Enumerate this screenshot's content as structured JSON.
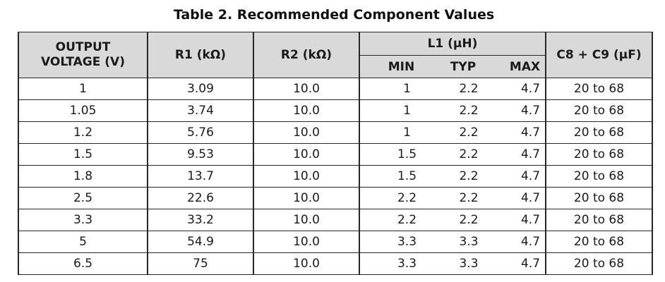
{
  "title": "Table 2. Recommended Component Values",
  "table": {
    "header": {
      "output_voltage": [
        "OUTPUT",
        "VOLTAGE (V)"
      ],
      "r1": "R1 (kΩ)",
      "r2": "R2 (kΩ)",
      "l1_group": "L1 (µH)",
      "min": "MIN",
      "typ": "TYP",
      "max": "MAX",
      "c8_c9": "C8 + C9 (µF)"
    },
    "rows": [
      [
        "1",
        "3.09",
        "10.0",
        "1",
        "2.2",
        "4.7",
        "20 to 68"
      ],
      [
        "1.05",
        "3.74",
        "10.0",
        "1",
        "2.2",
        "4.7",
        "20 to 68"
      ],
      [
        "1.2",
        "5.76",
        "10.0",
        "1",
        "2.2",
        "4.7",
        "20 to 68"
      ],
      [
        "1.5",
        "9.53",
        "10.0",
        "1.5",
        "2.2",
        "4.7",
        "20 to 68"
      ],
      [
        "1.8",
        "13.7",
        "10.0",
        "1.5",
        "2.2",
        "4.7",
        "20 to 68"
      ],
      [
        "2.5",
        "22.6",
        "10.0",
        "2.2",
        "2.2",
        "4.7",
        "20 to 68"
      ],
      [
        "3.3",
        "33.2",
        "10.0",
        "2.2",
        "2.2",
        "4.7",
        "20 to 68"
      ],
      [
        "5",
        "54.9",
        "10.0",
        "3.3",
        "3.3",
        "4.7",
        "20 to 68"
      ],
      [
        "6.5",
        "75",
        "10.0",
        "3.3",
        "3.3",
        "4.7",
        "20 to 68"
      ]
    ]
  },
  "colors": {
    "header_bg": "#d9d9d9",
    "border": "#262626",
    "text": "#1a1a1a"
  }
}
